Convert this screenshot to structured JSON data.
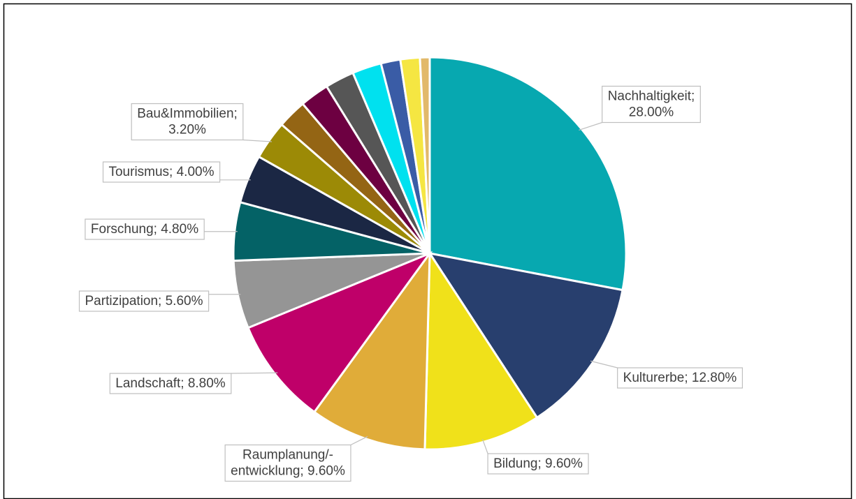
{
  "chart_data": {
    "type": "pie",
    "values": [
      28,
      12.8,
      9.6,
      9.6,
      8.8,
      5.6,
      4.8,
      4.0,
      3.2,
      2.4,
      2.4,
      2.4,
      2.4,
      1.6,
      1.6,
      0.8
    ],
    "value_labels": [
      "Nachhaltigkeit;\n28.00%",
      "Kulturerbe; 12.80%",
      "Bildung; 9.60%",
      "Raumplanung/-\nentwicklung; 9.60%",
      "Landschaft; 8.80%",
      "Partizipation; 5.60%",
      "Forschung; 4.80%",
      "Tourismus; 4.00%",
      "Bau&Immobilien;\n3.20%",
      null,
      null,
      null,
      null,
      null,
      null,
      null
    ],
    "colors": [
      "#07a8b0",
      "#283f6e",
      "#f0e11a",
      "#e0ac39",
      "#bf0069",
      "#959595",
      "#046266",
      "#1b2744",
      "#9c8a06",
      "#946514",
      "#6d0041",
      "#565656",
      "#00e1ef",
      "#3a5ca6",
      "#f5e642",
      "#e2b96a"
    ]
  }
}
